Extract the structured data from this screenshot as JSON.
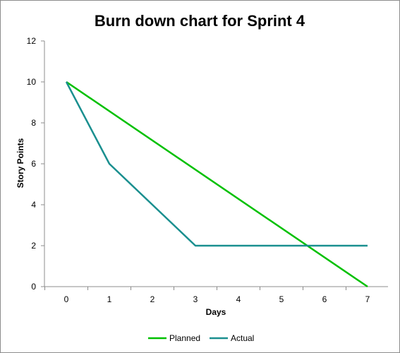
{
  "chart_data": {
    "type": "line",
    "title": "Burn down chart for Sprint 4",
    "xlabel": "Days",
    "ylabel": "Story Points",
    "x": [
      0,
      1,
      2,
      3,
      4,
      5,
      6,
      7
    ],
    "xlim": [
      0,
      7
    ],
    "ylim": [
      0,
      12
    ],
    "y_ticks": [
      0,
      2,
      4,
      6,
      8,
      10,
      12
    ],
    "grid": false,
    "legend_position": "bottom",
    "series": [
      {
        "name": "Planned",
        "color": "#00c000",
        "points": [
          [
            0,
            10
          ],
          [
            7,
            0
          ]
        ]
      },
      {
        "name": "Actual",
        "color": "#1a8f8f",
        "points": [
          [
            0,
            10
          ],
          [
            1,
            6
          ],
          [
            3,
            2
          ],
          [
            7,
            2
          ]
        ]
      }
    ]
  }
}
